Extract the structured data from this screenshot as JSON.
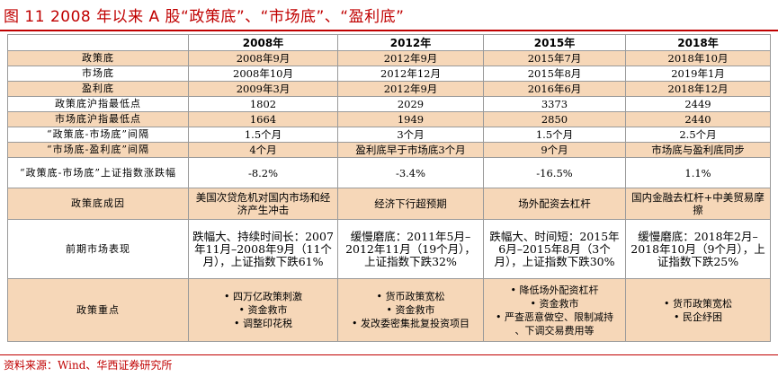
{
  "title": "图 11 2008 年以来 A 股“政策底”、“市场底”、“盈利底”",
  "columns": [
    "2008年",
    "2012年",
    "2015年",
    "2018年"
  ],
  "rows": [
    {
      "label": "政策底",
      "values": [
        "2008年9月",
        "2012年9月",
        "2015年7月",
        "2018年10月"
      ],
      "highlight": true
    },
    {
      "label": "市场底",
      "values": [
        "2008年10月",
        "2012年12月",
        "2015年8月",
        "2019年1月"
      ],
      "highlight": false
    },
    {
      "label": "盈利底",
      "values": [
        "2009年3月",
        "2012年9月",
        "2016年6月",
        "2018年12月"
      ],
      "highlight": true
    },
    {
      "label": "政策底沪指最低点",
      "values": [
        "1802",
        "2029",
        "3373",
        "2449"
      ],
      "highlight": false
    },
    {
      "label": "市场底沪指最低点",
      "values": [
        "1664",
        "1949",
        "2850",
        "2440"
      ],
      "highlight": true
    },
    {
      "label": "“政策底-市场底”间隔",
      "values": [
        "1.5个月",
        "3个月",
        "1.5个月",
        "2.5个月"
      ],
      "highlight": false
    },
    {
      "label": "“市场底-盈利底”间隔",
      "values": [
        "4个月",
        "盈利底早于市场底3个月",
        "9个月",
        "市场底与盈利底同步"
      ],
      "highlight": true
    }
  ],
  "change_row": {
    "label": "“政策底-市场底”上证指数涨跌幅",
    "values": [
      "-8.2%",
      "-3.4%",
      "-16.5%",
      "1.1%"
    ]
  },
  "cause_row": {
    "label": "政策底成因",
    "values": [
      "美国次贷危机对国内市场和经济产生冲击",
      "经济下行超预期",
      "场外配资去杠杆",
      "国内金融去杠杆+中美贸易摩擦"
    ]
  },
  "market_row": {
    "label": "前期市场表现",
    "values": [
      "跌幅大、持续时间长：2007年11月–2008年9月（11个月），上证指数下跌61%",
      "缓慢磨底：2011年5月–2012年11月（19个月），上证指数下跌32%",
      "跌幅大、时间短：2015年6月–2015年8月（3个月），上证指数下跌30%",
      "缓慢磨底：2018年2月–2018年10月（9个月），上证指数下跌25%"
    ]
  },
  "policy_row": {
    "label": "政策重点",
    "values": [
      [
        "• 四万亿政策刺激",
        "• 资金救市",
        "• 调整印花税"
      ],
      [
        "• 货币政策宽松",
        "• 资金救市",
        "• 发改委密集批复投资项目"
      ],
      [
        "• 降低场外配资杠杆",
        "• 资金救市",
        "• 严查恶意做空、限制减持",
        "、下调交易费用等"
      ],
      [
        "• 货币政策宽松",
        "• 民企纾困"
      ]
    ]
  },
  "footer": "资料来源：Wind、华西证券研究所"
}
